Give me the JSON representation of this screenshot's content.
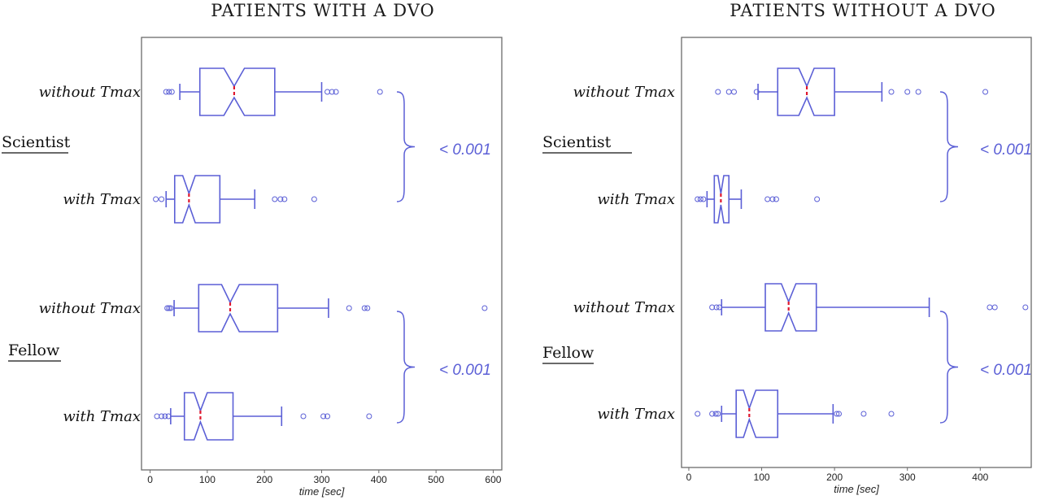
{
  "colors": {
    "box": "#5b5fd6",
    "median": "#e0182d",
    "brace": "#5b5fd6",
    "pval": "#5b5fd6",
    "axes": "#6b6b6b"
  },
  "chart_data": [
    {
      "type": "box",
      "title": "PATIENTS WITH A DVO",
      "xlabel": "time [sec]",
      "xlim": [
        -15,
        615
      ],
      "xticks": [
        0,
        100,
        200,
        300,
        400,
        500,
        600
      ],
      "groups": [
        "Scientist",
        "Fellow"
      ],
      "p_values": [
        "< 0.001",
        "< 0.001"
      ],
      "boxes": [
        {
          "group": "Scientist",
          "label": "without Tmax",
          "whisker_low": 52,
          "q1": 87,
          "notch_low": 129,
          "median": 147,
          "notch_high": 165,
          "q3": 218,
          "whisker_high": 300,
          "outliers": [
            28,
            33,
            38,
            310,
            318,
            325,
            402
          ]
        },
        {
          "group": "Scientist",
          "label": "with Tmax",
          "whisker_low": 28,
          "q1": 43,
          "notch_low": 57,
          "median": 68,
          "notch_high": 79,
          "q3": 122,
          "whisker_high": 183,
          "outliers": [
            10,
            20,
            218,
            228,
            235,
            287
          ]
        },
        {
          "group": "Fellow",
          "label": "without Tmax",
          "whisker_low": 42,
          "q1": 85,
          "notch_low": 125,
          "median": 140,
          "notch_high": 156,
          "q3": 223,
          "whisker_high": 312,
          "outliers": [
            30,
            33,
            36,
            348,
            375,
            380,
            585
          ]
        },
        {
          "group": "Fellow",
          "label": "with Tmax",
          "whisker_low": 36,
          "q1": 60,
          "notch_low": 77,
          "median": 88,
          "notch_high": 100,
          "q3": 145,
          "whisker_high": 230,
          "outliers": [
            12,
            20,
            26,
            32,
            268,
            303,
            310,
            383
          ]
        }
      ]
    },
    {
      "type": "box",
      "title": "PATIENTS WITHOUT  A DVO",
      "xlabel": "time [sec]",
      "xlim": [
        -10,
        470
      ],
      "xticks": [
        0,
        100,
        200,
        300,
        400
      ],
      "groups": [
        "Scientist",
        "Fellow"
      ],
      "p_values": [
        "< 0.001",
        "< 0.001"
      ],
      "boxes": [
        {
          "group": "Scientist",
          "label": "without Tmax",
          "whisker_low": 95,
          "q1": 122,
          "notch_low": 151,
          "median": 162,
          "notch_high": 172,
          "q3": 200,
          "whisker_high": 265,
          "outliers": [
            40,
            55,
            62,
            93,
            278,
            300,
            315,
            407
          ]
        },
        {
          "group": "Scientist",
          "label": "with Tmax",
          "whisker_low": 25,
          "q1": 35,
          "notch_low": 40,
          "median": 44,
          "notch_high": 48,
          "q3": 55,
          "whisker_high": 72,
          "outliers": [
            12,
            16,
            20,
            108,
            115,
            120,
            176
          ]
        },
        {
          "group": "Fellow",
          "label": "without Tmax",
          "whisker_low": 45,
          "q1": 105,
          "notch_low": 127,
          "median": 137,
          "notch_high": 147,
          "q3": 175,
          "whisker_high": 330,
          "outliers": [
            32,
            38,
            42,
            413,
            420,
            462
          ]
        },
        {
          "group": "Fellow",
          "label": "with Tmax",
          "whisker_low": 45,
          "q1": 65,
          "notch_low": 75,
          "median": 83,
          "notch_high": 92,
          "q3": 122,
          "whisker_high": 198,
          "outliers": [
            12,
            32,
            37,
            40,
            203,
            206,
            240,
            278
          ]
        }
      ]
    }
  ]
}
